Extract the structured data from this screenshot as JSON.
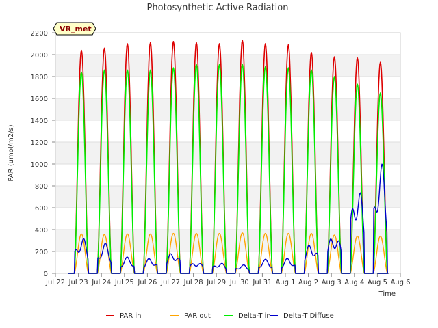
{
  "chart_data": {
    "type": "line",
    "title": "Photosynthetic Active Radiation",
    "xlabel": "Time",
    "ylabel": "PAR (umol/m2/s)",
    "badge": "VR_met",
    "ylim": [
      0,
      2200
    ],
    "yticks": [
      0,
      200,
      400,
      600,
      800,
      1000,
      1200,
      1400,
      1600,
      1800,
      2000,
      2200
    ],
    "xticks": [
      "Jul 22",
      "Jul 23",
      "Jul 24",
      "Jul 25",
      "Jul 26",
      "Jul 27",
      "Jul 28",
      "Jul 29",
      "Jul 30",
      "Jul 31",
      "Aug 1",
      "Aug 2",
      "Aug 3",
      "Aug 4",
      "Aug 5",
      "Aug 6"
    ],
    "grid": true,
    "legend_position": "bottom",
    "series": [
      {
        "name": "PAR in",
        "color": "#dd0000",
        "daily_peaks": [
          2040,
          2060,
          2100,
          2110,
          2120,
          2110,
          2100,
          2130,
          2100,
          2090,
          2020,
          1980,
          1970,
          1930
        ]
      },
      {
        "name": "PAR out",
        "color": "#ffa500",
        "daily_peaks": [
          360,
          355,
          360,
          360,
          365,
          365,
          365,
          370,
          365,
          365,
          365,
          350,
          340,
          340
        ]
      },
      {
        "name": "Delta-T in",
        "color": "#00ee00",
        "daily_peaks": [
          1840,
          1860,
          1860,
          1860,
          1880,
          1910,
          1910,
          1910,
          1890,
          1880,
          1860,
          1800,
          1730,
          1650
        ]
      },
      {
        "name": "Delta-T Diffuse",
        "color": "#0000cc",
        "daily_peaks": [
          340,
          280,
          150,
          140,
          200,
          110,
          100,
          80,
          130,
          140,
          280,
          380,
          830,
          1040
        ]
      }
    ]
  }
}
